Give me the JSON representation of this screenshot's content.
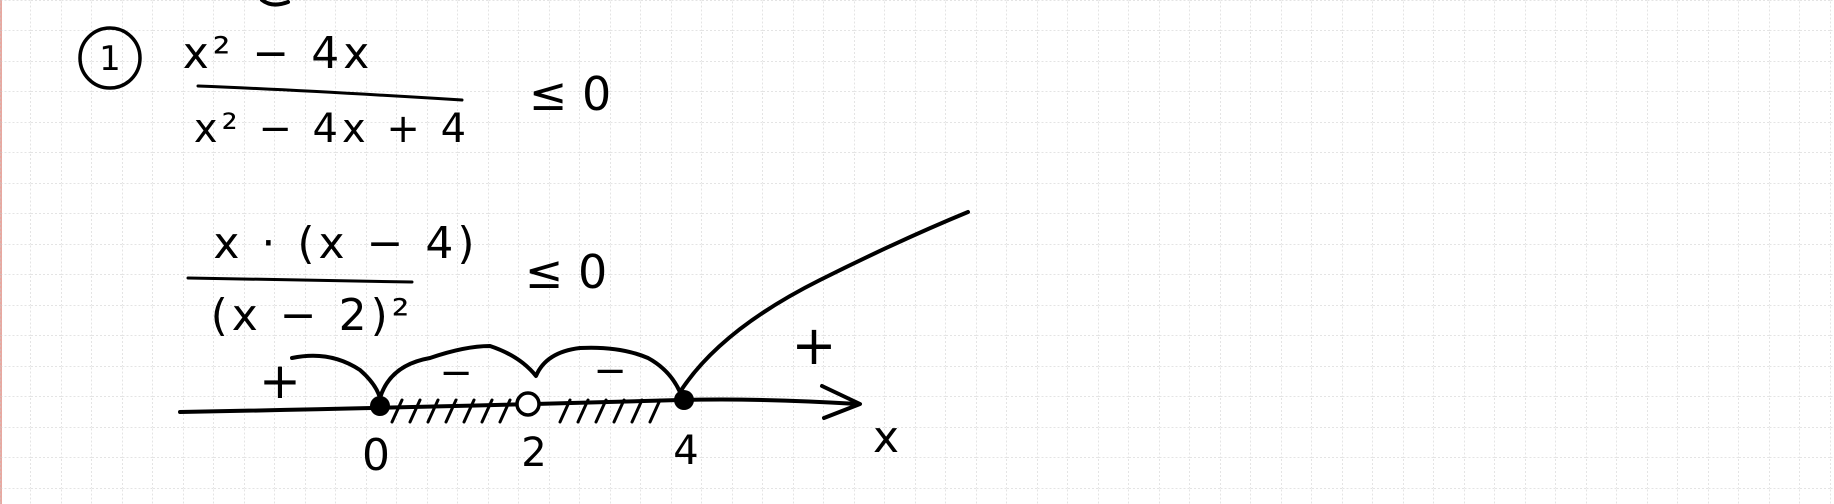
{
  "colors": {
    "ink": "#000000",
    "grid": "#c9c9c9",
    "paper": "#ffffff",
    "margin_rule": "#e8a8a0"
  },
  "problem": {
    "number": "1",
    "relation": "≤ 0",
    "fraction1": {
      "numerator": "x² − 4x",
      "denominator": "x² − 4x + 4"
    },
    "fraction2": {
      "numerator": "x · (x − 4)",
      "denominator": "(x − 2)²"
    }
  },
  "number_line": {
    "axis_label": "x",
    "points": [
      {
        "label": "0",
        "style": "filled"
      },
      {
        "label": "2",
        "style": "hollow"
      },
      {
        "label": "4",
        "style": "filled"
      }
    ],
    "signs": [
      "+",
      "−",
      "−",
      "+"
    ]
  }
}
